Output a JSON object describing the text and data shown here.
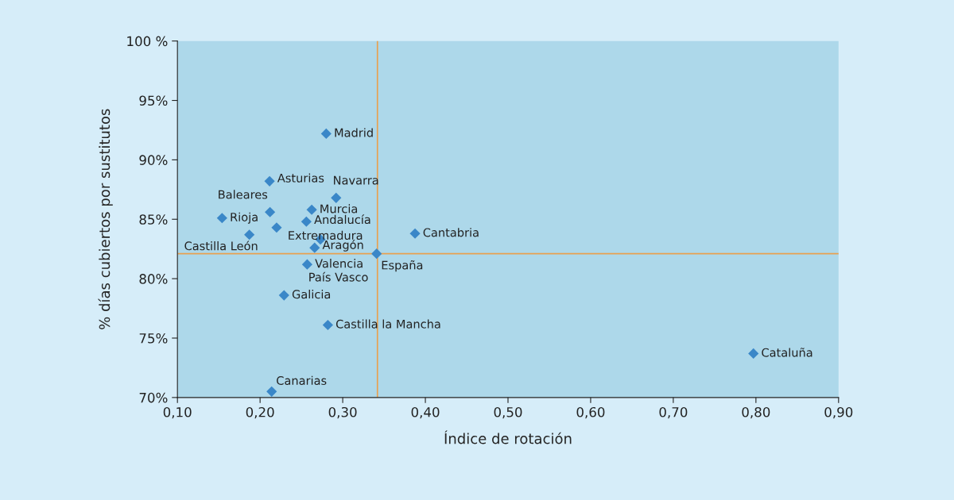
{
  "chart_data": {
    "type": "scatter",
    "xlabel": "Índice de rotación",
    "ylabel": "% días cubiertos por sustitutos",
    "x": [
      0.28,
      0.2115,
      0.292,
      0.212,
      0.2625,
      0.154,
      0.256,
      0.22,
      0.187,
      0.3875,
      0.273,
      0.266,
      0.341,
      0.257,
      0.229,
      0.282,
      0.214,
      0.797
    ],
    "values": [
      92.2,
      88.2,
      86.8,
      85.6,
      85.8,
      85.1,
      84.8,
      84.3,
      83.7,
      83.8,
      83.3,
      82.6,
      82.1,
      81.2,
      78.6,
      76.1,
      70.5,
      73.7
    ],
    "color": "#3a87c8",
    "marker": "diamond",
    "annotations": [
      {
        "text": "Madrid",
        "x": 0.28,
        "y": 92.2
      },
      {
        "text": "Asturias",
        "x": 0.2115,
        "y": 88.2
      },
      {
        "text": "Navarra",
        "x": 0.292,
        "y": 86.8
      },
      {
        "text": "Baleares",
        "x": 0.212,
        "y": 85.6
      },
      {
        "text": "Murcia",
        "x": 0.2625,
        "y": 85.8
      },
      {
        "text": "Rioja",
        "x": 0.154,
        "y": 85.1
      },
      {
        "text": "Andalucía",
        "x": 0.256,
        "y": 84.8
      },
      {
        "text": "Extremadura",
        "x": 0.22,
        "y": 84.3
      },
      {
        "text": "Castilla León",
        "x": 0.187,
        "y": 83.7
      },
      {
        "text": "Cantabria",
        "x": 0.3875,
        "y": 83.8
      },
      {
        "text": "País Vasco",
        "x": 0.273,
        "y": 83.3
      },
      {
        "text": "Aragón",
        "x": 0.266,
        "y": 82.6
      },
      {
        "text": "España",
        "x": 0.341,
        "y": 82.1
      },
      {
        "text": "Valencia",
        "x": 0.257,
        "y": 81.2
      },
      {
        "text": "Galicia",
        "x": 0.229,
        "y": 78.6
      },
      {
        "text": "Castilla la Mancha",
        "x": 0.282,
        "y": 76.1
      },
      {
        "text": "Canarias",
        "x": 0.214,
        "y": 70.5
      },
      {
        "text": "Cataluña",
        "x": 0.797,
        "y": 73.7
      }
    ],
    "ref_lines": [
      {
        "axis": "x",
        "value": 0.342,
        "color": "#e8a050"
      },
      {
        "axis": "y",
        "value": 82.1,
        "color": "#e8a050"
      }
    ],
    "xlim": [
      0.1,
      0.9
    ],
    "ylim": [
      70,
      100
    ],
    "xticks": [
      {
        "value": 0.1,
        "label": "0,10"
      },
      {
        "value": 0.2,
        "label": "0,20"
      },
      {
        "value": 0.3,
        "label": "0,30"
      },
      {
        "value": 0.4,
        "label": "0,40"
      },
      {
        "value": 0.5,
        "label": "0,50"
      },
      {
        "value": 0.6,
        "label": "0,60"
      },
      {
        "value": 0.7,
        "label": "0,70"
      },
      {
        "value": 0.8,
        "label": "0,80"
      },
      {
        "value": 0.9,
        "label": "0,90"
      }
    ],
    "yticks": [
      {
        "value": 70,
        "label": "70%"
      },
      {
        "value": 75,
        "label": "75%"
      },
      {
        "value": 80,
        "label": "80%"
      },
      {
        "value": 85,
        "label": "85%"
      },
      {
        "value": 90,
        "label": "90%"
      },
      {
        "value": 95,
        "label": "95%"
      },
      {
        "value": 100,
        "label": "100 %"
      }
    ],
    "grid": false
  }
}
